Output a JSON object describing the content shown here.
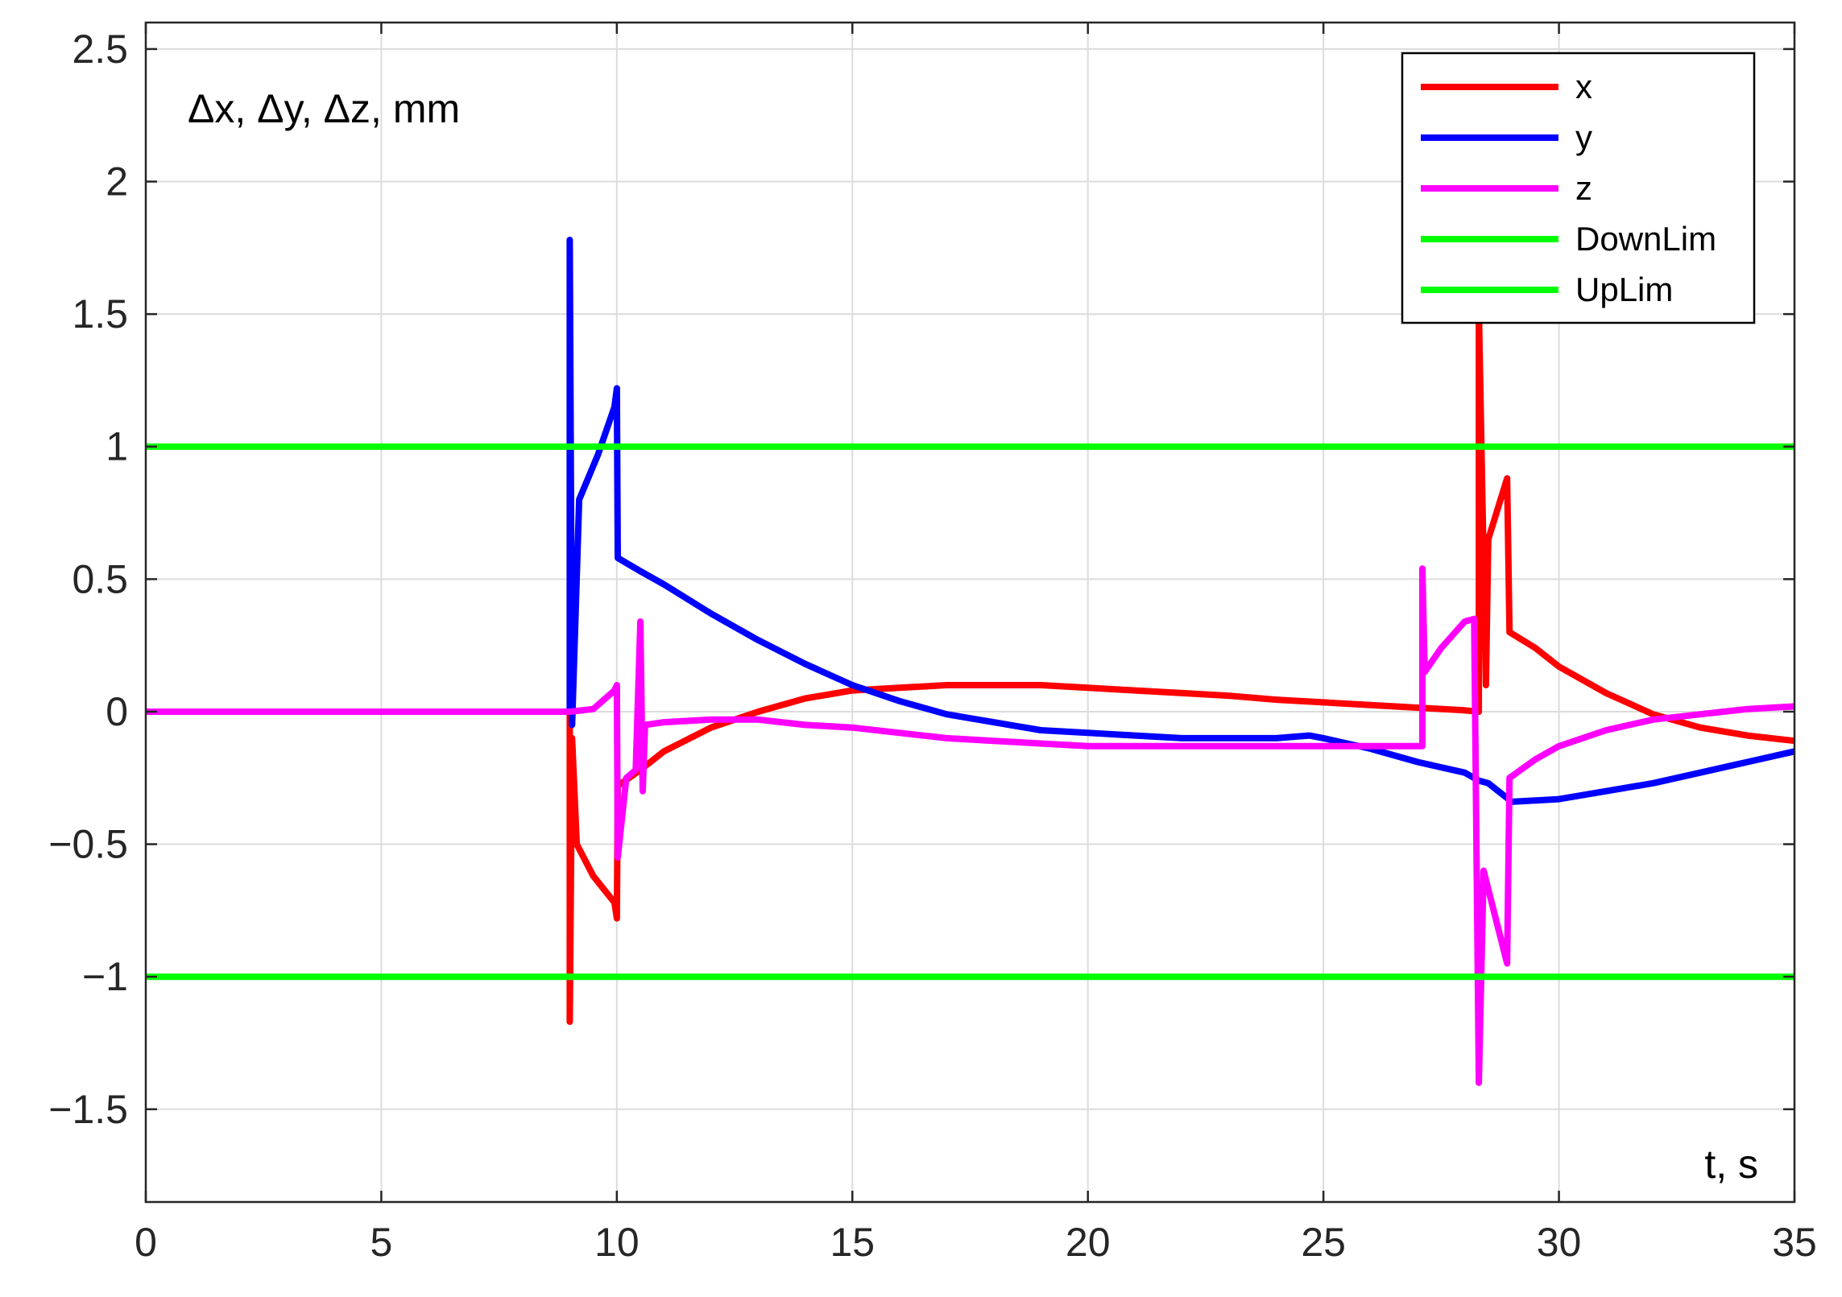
{
  "chart_data": {
    "type": "line",
    "ylabel": "Δx, Δy, Δz, mm",
    "xlabel": "t, s",
    "xlim": [
      0,
      35
    ],
    "ylim": [
      -1.85,
      2.6
    ],
    "xticks": [
      0,
      5,
      10,
      15,
      20,
      25,
      30,
      35
    ],
    "xtick_labels": [
      "0",
      "5",
      "10",
      "15",
      "20",
      "25",
      "30",
      "35"
    ],
    "yticks": [
      -1.5,
      -1,
      -0.5,
      0,
      0.5,
      1,
      1.5,
      2,
      2.5
    ],
    "ytick_labels": [
      "−1.5",
      "−1",
      "−0.5",
      "0",
      "0.5",
      "1",
      "1.5",
      "2",
      "2.5"
    ],
    "grid": true,
    "legend_position": "top-right",
    "series": [
      {
        "name": "x",
        "color": "#ff0000",
        "points": [
          [
            0,
            0
          ],
          [
            9,
            0
          ],
          [
            9,
            -1.17
          ],
          [
            9.05,
            -0.1
          ],
          [
            9.15,
            -0.5
          ],
          [
            9.5,
            -0.62
          ],
          [
            9.95,
            -0.72
          ],
          [
            10,
            -0.78
          ],
          [
            10.02,
            -0.28
          ],
          [
            10.5,
            -0.22
          ],
          [
            11,
            -0.15
          ],
          [
            12,
            -0.06
          ],
          [
            13,
            0.0
          ],
          [
            14,
            0.05
          ],
          [
            15,
            0.08
          ],
          [
            16,
            0.09
          ],
          [
            17,
            0.1
          ],
          [
            18,
            0.1
          ],
          [
            19,
            0.1
          ],
          [
            20,
            0.09
          ],
          [
            21,
            0.08
          ],
          [
            22,
            0.07
          ],
          [
            23,
            0.06
          ],
          [
            24,
            0.045
          ],
          [
            25,
            0.035
          ],
          [
            26,
            0.025
          ],
          [
            27,
            0.015
          ],
          [
            28,
            0.005
          ],
          [
            28.3,
            0.0
          ],
          [
            28.3,
            1.52
          ],
          [
            28.45,
            0.1
          ],
          [
            28.5,
            0.65
          ],
          [
            28.9,
            0.88
          ],
          [
            28.95,
            0.3
          ],
          [
            29.5,
            0.24
          ],
          [
            30,
            0.17
          ],
          [
            31,
            0.07
          ],
          [
            32,
            -0.01
          ],
          [
            33,
            -0.06
          ],
          [
            34,
            -0.09
          ],
          [
            35,
            -0.11
          ]
        ]
      },
      {
        "name": "y",
        "color": "#0000ff",
        "points": [
          [
            0,
            0
          ],
          [
            9,
            0
          ],
          [
            9,
            1.78
          ],
          [
            9.05,
            -0.05
          ],
          [
            9.2,
            0.8
          ],
          [
            9.6,
            0.97
          ],
          [
            9.95,
            1.15
          ],
          [
            10,
            1.22
          ],
          [
            10.02,
            0.58
          ],
          [
            10.5,
            0.53
          ],
          [
            11,
            0.48
          ],
          [
            12,
            0.37
          ],
          [
            13,
            0.27
          ],
          [
            14,
            0.18
          ],
          [
            15,
            0.1
          ],
          [
            16,
            0.04
          ],
          [
            17,
            -0.01
          ],
          [
            18,
            -0.04
          ],
          [
            19,
            -0.07
          ],
          [
            20,
            -0.08
          ],
          [
            21,
            -0.09
          ],
          [
            22,
            -0.1
          ],
          [
            23,
            -0.1
          ],
          [
            24,
            -0.1
          ],
          [
            24.7,
            -0.09
          ],
          [
            25,
            -0.1
          ],
          [
            26,
            -0.14
          ],
          [
            27,
            -0.19
          ],
          [
            28,
            -0.23
          ],
          [
            28.3,
            -0.26
          ],
          [
            28.5,
            -0.27
          ],
          [
            29,
            -0.34
          ],
          [
            30,
            -0.33
          ],
          [
            31,
            -0.3
          ],
          [
            32,
            -0.27
          ],
          [
            33,
            -0.23
          ],
          [
            34,
            -0.19
          ],
          [
            35,
            -0.15
          ]
        ]
      },
      {
        "name": "z",
        "color": "#ff00ff",
        "points": [
          [
            0,
            0
          ],
          [
            9,
            0
          ],
          [
            9.5,
            0.01
          ],
          [
            9.95,
            0.08
          ],
          [
            10,
            0.1
          ],
          [
            10.02,
            -0.55
          ],
          [
            10.2,
            -0.25
          ],
          [
            10.4,
            -0.22
          ],
          [
            10.5,
            0.34
          ],
          [
            10.55,
            -0.3
          ],
          [
            10.6,
            -0.05
          ],
          [
            11,
            -0.04
          ],
          [
            12,
            -0.03
          ],
          [
            13,
            -0.03
          ],
          [
            14,
            -0.05
          ],
          [
            15,
            -0.06
          ],
          [
            16,
            -0.08
          ],
          [
            17,
            -0.1
          ],
          [
            18,
            -0.11
          ],
          [
            19,
            -0.12
          ],
          [
            20,
            -0.13
          ],
          [
            21,
            -0.13
          ],
          [
            22,
            -0.13
          ],
          [
            23,
            -0.13
          ],
          [
            24,
            -0.13
          ],
          [
            25,
            -0.13
          ],
          [
            26,
            -0.13
          ],
          [
            27,
            -0.13
          ],
          [
            27.1,
            -0.13
          ],
          [
            27.1,
            0.54
          ],
          [
            27.15,
            0.15
          ],
          [
            27.5,
            0.24
          ],
          [
            28,
            0.34
          ],
          [
            28.2,
            0.35
          ],
          [
            28.3,
            -1.4
          ],
          [
            28.4,
            -0.6
          ],
          [
            28.9,
            -0.95
          ],
          [
            28.95,
            -0.25
          ],
          [
            29.5,
            -0.18
          ],
          [
            30,
            -0.13
          ],
          [
            31,
            -0.07
          ],
          [
            32,
            -0.03
          ],
          [
            33,
            -0.01
          ],
          [
            34,
            0.01
          ],
          [
            35,
            0.02
          ]
        ]
      },
      {
        "name": "DownLim",
        "color": "#00ff00",
        "points": [
          [
            0,
            -1
          ],
          [
            35,
            -1
          ]
        ]
      },
      {
        "name": "UpLim",
        "color": "#00ff00",
        "points": [
          [
            0,
            1
          ],
          [
            35,
            1
          ]
        ]
      }
    ]
  }
}
